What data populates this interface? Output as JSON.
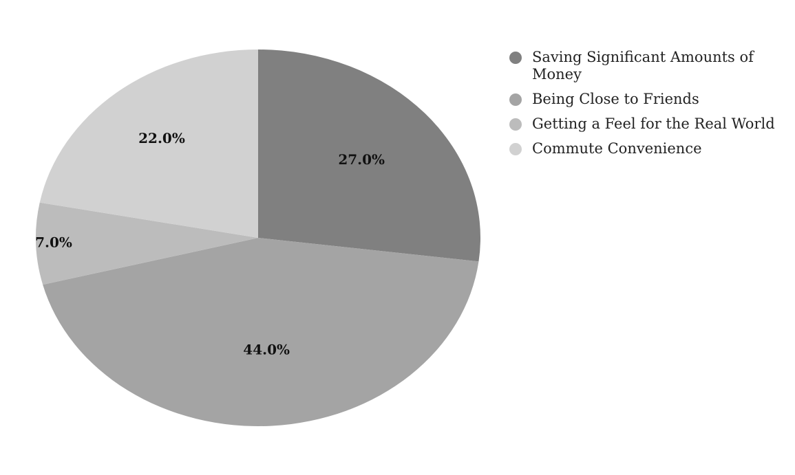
{
  "chart_data": {
    "type": "pie",
    "categories": [
      "Saving Significant Amounts of Money",
      "Being Close to Friends",
      "Getting a Feel for the Real World",
      "Commute Convenience"
    ],
    "values": [
      27.0,
      44.0,
      7.0,
      22.0
    ],
    "value_labels": [
      "27.0%",
      "44.0%",
      "7.0%",
      "22.0%"
    ],
    "colors": [
      "#808080",
      "#a4a4a4",
      "#bcbcbc",
      "#d1d1d1"
    ],
    "start_angle": "12 o'clock",
    "direction": "clockwise",
    "legend_position": "right"
  }
}
